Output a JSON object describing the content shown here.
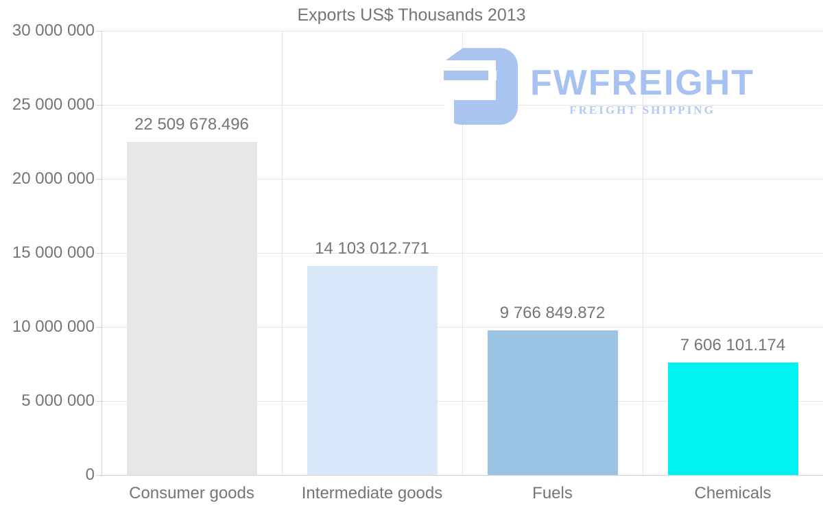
{
  "title": "Exports US$ Thousands 2013",
  "logo": {
    "name": "FWFREIGHT",
    "tagline": "FREIGHT SHIPPING",
    "color": "#a7c2f0",
    "tagline_color": "#b3c9f2",
    "icon_color": "#a9c4ef"
  },
  "chart_data": {
    "type": "bar",
    "title": "Exports US$ Thousands 2013",
    "categories": [
      "Consumer goods",
      "Intermediate goods",
      "Fuels",
      "Chemicals"
    ],
    "values": [
      22509678.496,
      14103012.771,
      9766849.872,
      7606101.174
    ],
    "data_labels": [
      "22 509 678.496",
      "14 103 012.771",
      "9 766 849.872",
      "7 606 101.174"
    ],
    "bar_colors": [
      "#e7e7e7",
      "#d9e8f8",
      "#9ac3e4",
      "#00f2f2"
    ],
    "xlabel": "",
    "ylabel": "",
    "ylim": [
      0,
      30000000
    ],
    "yticks": [
      {
        "value": 0,
        "label": "0"
      },
      {
        "value": 5000000,
        "label": "5 000 000"
      },
      {
        "value": 10000000,
        "label": "10 000 000"
      },
      {
        "value": 15000000,
        "label": "15 000 000"
      },
      {
        "value": 20000000,
        "label": "20 000 000"
      },
      {
        "value": 25000000,
        "label": "25 000 000"
      },
      {
        "value": 30000000,
        "label": "30 000 000"
      }
    ],
    "grid": true,
    "legend": false,
    "text_color": "#757575",
    "grid_color": "#e4e4e4",
    "axis_color": "#d2d2d2"
  }
}
